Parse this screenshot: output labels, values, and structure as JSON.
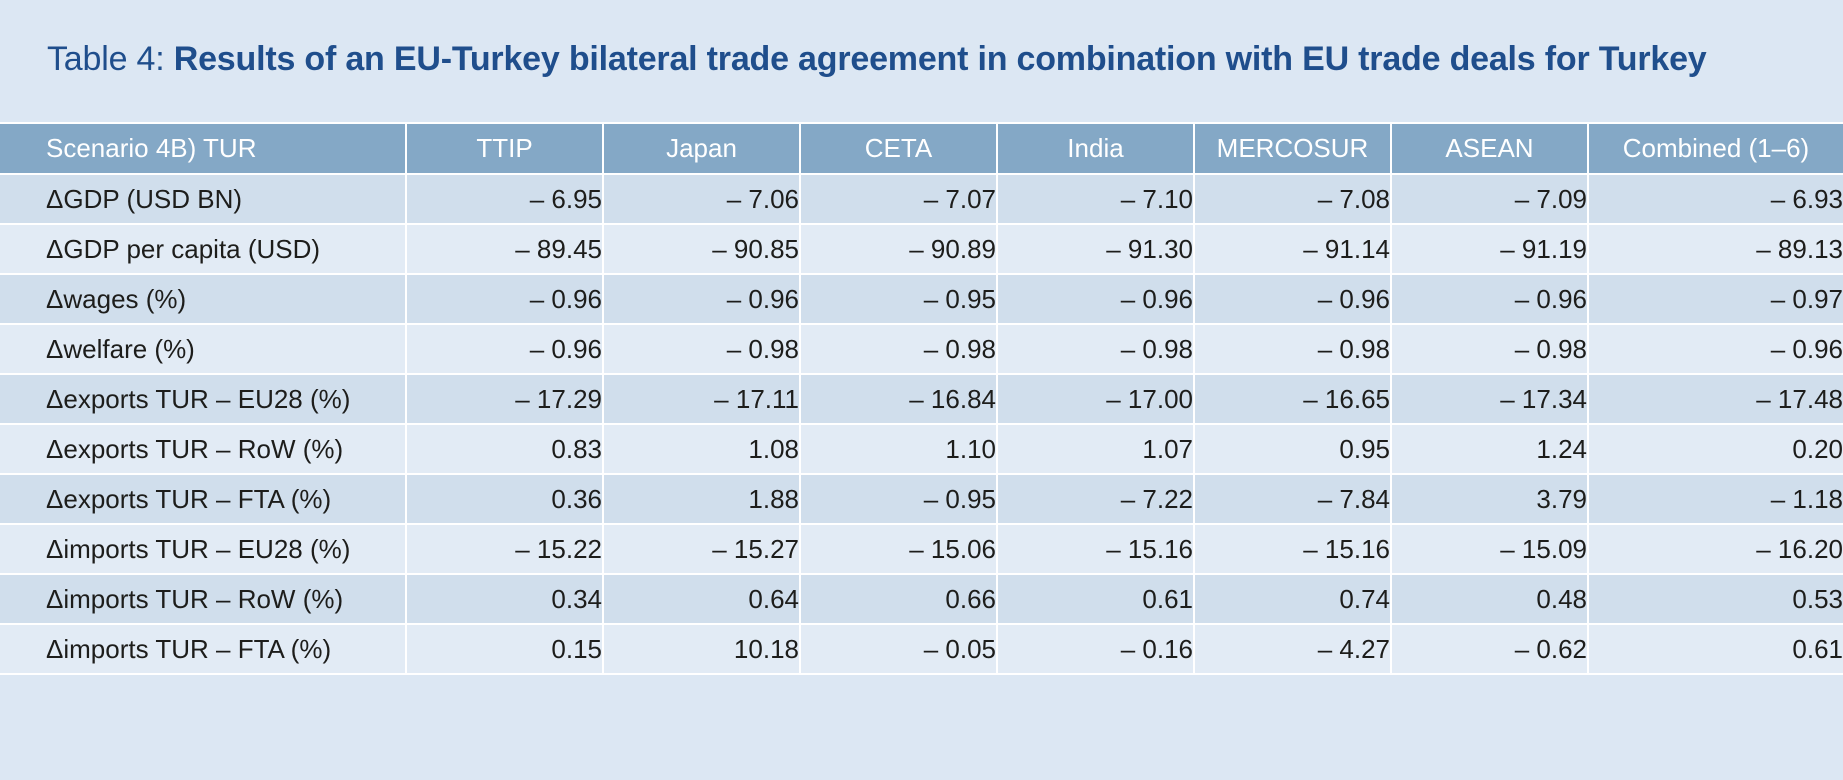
{
  "title": {
    "prefix": "Table 4: ",
    "main": "Results of an EU-Turkey bilateral trade agreement in combination with EU trade deals for Turkey"
  },
  "table": {
    "headers": [
      "Scenario 4B) TUR",
      "TTIP",
      "Japan",
      "CETA",
      "India",
      "MERCOSUR",
      "ASEAN",
      "Combined (1–6)"
    ],
    "rows": [
      {
        "label": "ΔGDP (USD BN)",
        "values": [
          "– 6.95",
          "– 7.06",
          "– 7.07",
          "– 7.10",
          "– 7.08",
          "– 7.09",
          "– 6.93"
        ]
      },
      {
        "label": "ΔGDP per capita (USD)",
        "values": [
          "– 89.45",
          "– 90.85",
          "– 90.89",
          "– 91.30",
          "– 91.14",
          "– 91.19",
          "– 89.13"
        ]
      },
      {
        "label": "Δwages (%)",
        "values": [
          "– 0.96",
          "– 0.96",
          "– 0.95",
          "– 0.96",
          "– 0.96",
          "– 0.96",
          "– 0.97"
        ]
      },
      {
        "label": "Δwelfare (%)",
        "values": [
          "– 0.96",
          "– 0.98",
          "– 0.98",
          "– 0.98",
          "– 0.98",
          "– 0.98",
          "– 0.96"
        ]
      },
      {
        "label": "Δexports TUR – EU28 (%)",
        "values": [
          "– 17.29",
          "– 17.11",
          "– 16.84",
          "– 17.00",
          "– 16.65",
          "– 17.34",
          "– 17.48"
        ]
      },
      {
        "label": "Δexports TUR – RoW (%)",
        "values": [
          "0.83",
          "1.08",
          "1.10",
          "1.07",
          "0.95",
          "1.24",
          "0.20"
        ]
      },
      {
        "label": "Δexports TUR – FTA (%)",
        "values": [
          "0.36",
          "1.88",
          "– 0.95",
          "– 7.22",
          "– 7.84",
          "3.79",
          "– 1.18"
        ]
      },
      {
        "label": "Δimports TUR – EU28 (%)",
        "values": [
          "– 15.22",
          "– 15.27",
          "– 15.06",
          "– 15.16",
          "– 15.16",
          "– 15.09",
          "– 16.20"
        ]
      },
      {
        "label": "Δimports TUR – RoW (%)",
        "values": [
          "0.34",
          "0.64",
          "0.66",
          "0.61",
          "0.74",
          "0.48",
          "0.53"
        ]
      },
      {
        "label": "Δimports TUR – FTA (%)",
        "values": [
          "0.15",
          "10.18",
          "– 0.05",
          "– 0.16",
          "– 4.27",
          "– 0.62",
          "0.61"
        ]
      }
    ]
  },
  "colors": {
    "background": "#dce7f3",
    "title": "#1f4e8c",
    "header_bg": "#84a8c6",
    "row_odd": "#d0deec",
    "row_even": "#e2ebf5"
  }
}
